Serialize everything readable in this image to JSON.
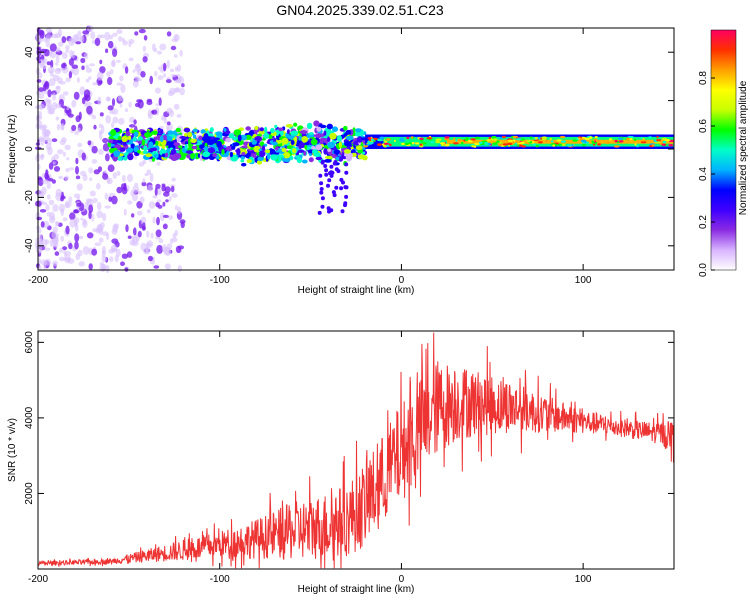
{
  "title": "GN04.2025.339.02.51.C23",
  "chart_data": [
    {
      "type": "heatmap",
      "xlabel": "Height of straight line (km)",
      "ylabel": "Frequency (Hz)",
      "xlim": [
        -200,
        150
      ],
      "ylim": [
        -50,
        50
      ],
      "xticks": [
        -200,
        -100,
        0,
        100
      ],
      "yticks": [
        -40,
        -20,
        0,
        20,
        40
      ],
      "colorbar": {
        "label": "Normalized spectral amplitude",
        "range": [
          0,
          1
        ],
        "ticks": [
          "0.0",
          "0.2",
          "0.4",
          "0.6",
          "0.8"
        ],
        "colors": [
          "#ffffff",
          "#d8b4ff",
          "#8a2be2",
          "#3f00ff",
          "#0000ff",
          "#00b4ff",
          "#00ffc8",
          "#00ff00",
          "#c8ff00",
          "#ffff00",
          "#ffa000",
          "#ff3000",
          "#ff0060"
        ]
      },
      "regions": [
        {
          "x_range": [
            -200,
            -140
          ],
          "freq_range": [
            -50,
            50
          ],
          "amplitude": 0.08,
          "description": "scattered noise"
        },
        {
          "x_range": [
            -160,
            -20
          ],
          "freq_center": 2,
          "freq_spread": 6,
          "amplitude": 0.35
        },
        {
          "x_range": [
            -20,
            150
          ],
          "freq_center": 3,
          "freq_spread": 2,
          "amplitude": 0.9
        }
      ]
    },
    {
      "type": "line",
      "xlabel": "Height of straight line (km)",
      "ylabel": "SNR (10 * v/v)",
      "xlim": [
        -200,
        150
      ],
      "ylim": [
        0,
        6300
      ],
      "xticks": [
        -200,
        -100,
        0,
        100
      ],
      "yticks": [
        2000,
        4000,
        6000
      ],
      "color": "#ee3333",
      "envelope": {
        "x": [
          -200,
          -160,
          -140,
          -120,
          -100,
          -80,
          -60,
          -40,
          -30,
          -20,
          -10,
          0,
          10,
          20,
          30,
          40,
          60,
          80,
          100,
          120,
          140,
          150
        ],
        "mean": [
          150,
          200,
          350,
          500,
          650,
          800,
          1000,
          1150,
          1300,
          1700,
          2400,
          3100,
          3700,
          4300,
          4400,
          4400,
          4300,
          4100,
          3900,
          3750,
          3600,
          3550
        ],
        "spread": [
          80,
          100,
          250,
          400,
          500,
          750,
          1100,
          1300,
          1400,
          1600,
          1700,
          1900,
          1900,
          1800,
          1500,
          1300,
          1000,
          700,
          450,
          350,
          400,
          600
        ]
      }
    }
  ]
}
